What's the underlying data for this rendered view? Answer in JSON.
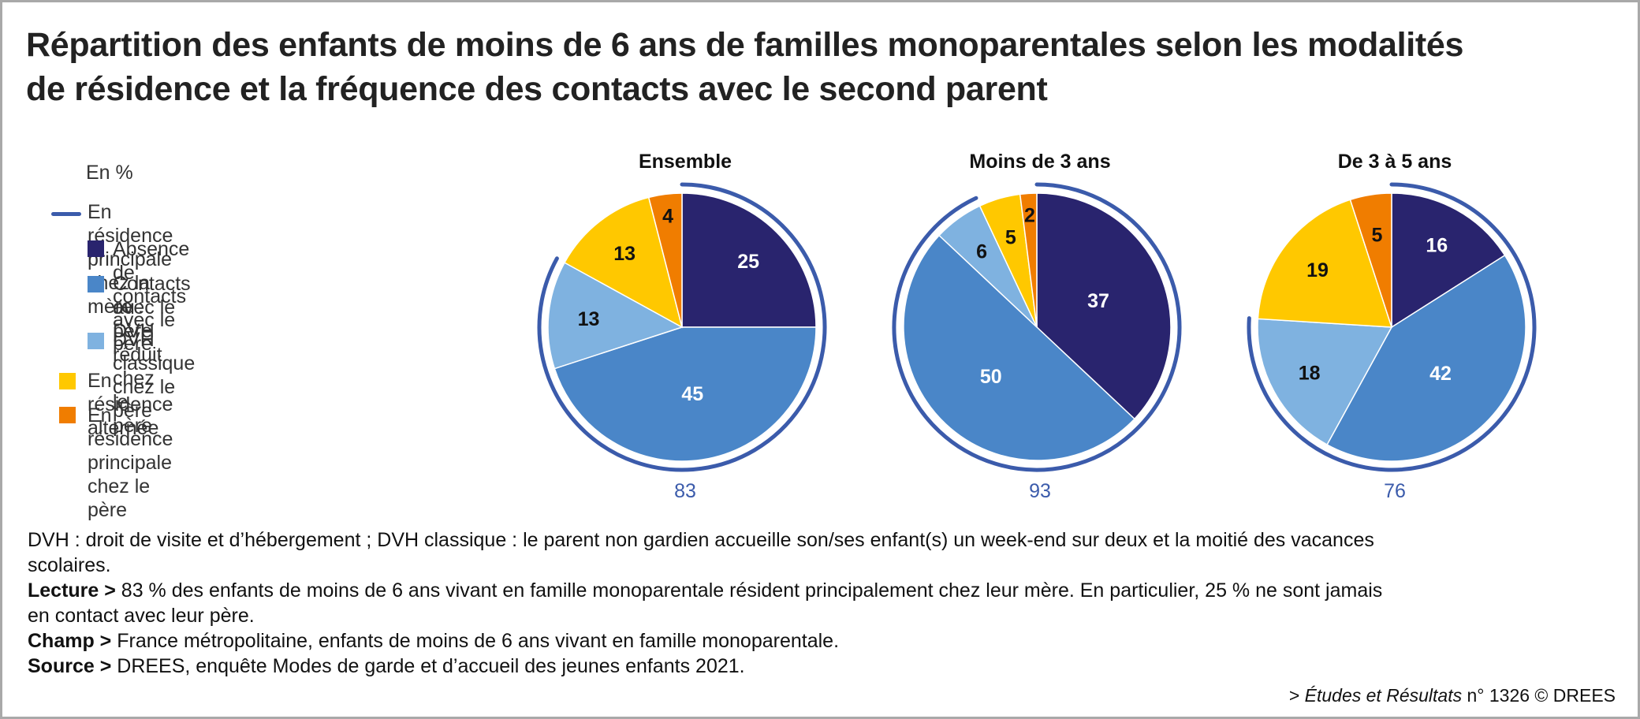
{
  "title_line1": "Répartition des enfants de moins de 6 ans de familles monoparentales selon les modalités",
  "title_line2": "de résidence et la fréquence des contacts avec le second parent",
  "unit": "En %",
  "legend": {
    "group_label": "En résidence principale chez la mère :",
    "items": [
      {
        "label": "Absence de contacts avec le père",
        "color": "#29246e"
      },
      {
        "label_line1": "Contacts avec le père",
        "label_line2": "ou DVH réduit chez le père",
        "color": "#4a86c8"
      },
      {
        "label": "DVH classique chez le père",
        "color": "#7fb2e0"
      },
      {
        "label": "En résidence alternée",
        "color": "#ffc800"
      },
      {
        "label": "En résidence principale chez le père",
        "color": "#f07d00"
      }
    ],
    "group_line_color": "#3b5bab"
  },
  "chart_data": {
    "type": "pie",
    "categories": [
      "Absence de contacts avec le père",
      "Contacts avec le père ou DVH réduit chez le père",
      "DVH classique chez le père",
      "En résidence alternée",
      "En résidence principale chez le père"
    ],
    "pies": [
      {
        "title": "Ensemble",
        "values": [
          25,
          45,
          13,
          13,
          4
        ],
        "total_mother": "83"
      },
      {
        "title": "Moins de 3 ans",
        "values": [
          37,
          50,
          6,
          5,
          2
        ],
        "total_mother": "93"
      },
      {
        "title": "De 3 à 5 ans",
        "values": [
          16,
          42,
          18,
          19,
          5
        ],
        "total_mother": "76"
      }
    ]
  },
  "notes": {
    "dvh_line1": "DVH : droit de visite et d’hébergement ; DVH classique : le parent non gardien accueille son/ses enfant(s) un week-end sur deux et la moitié des vacances",
    "dvh_line2": "scolaires.",
    "lecture_label": "Lecture >",
    "lecture_line1": " 83 % des enfants de moins de 6 ans vivant en famille monoparentale résident principalement chez leur mère. En particulier, 25 % ne sont jamais",
    "lecture_line2": "en contact avec leur père.",
    "champ_label": "Champ >",
    "champ_text": " France métropolitaine, enfants de moins de 6 ans vivant en famille monoparentale.",
    "source_label": "Source >",
    "source_text": " DREES, enquête Modes de garde et d’accueil des jeunes enfants 2021."
  },
  "credit": {
    "prefix": "> ",
    "publication": "Études et Résultats",
    "suffix": " n° 1326 © DREES"
  }
}
